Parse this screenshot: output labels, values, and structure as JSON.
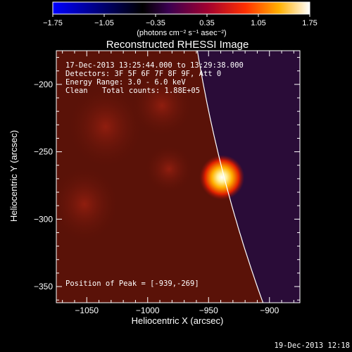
{
  "colorbar": {
    "ticks": [
      "−1.75",
      "−1.05",
      "−0.35",
      "0.35",
      "1.05",
      "1.75"
    ],
    "tick_values": [
      -1.75,
      -1.05,
      -0.35,
      0.35,
      1.05,
      1.75
    ],
    "range": [
      -1.75,
      1.75
    ],
    "unit_label": "(photons cm⁻² s⁻¹ asec⁻²)"
  },
  "chart_data": {
    "type": "heatmap",
    "title": "Reconstructed RHESSI Image",
    "xlabel": "Heliocentric X (arcsec)",
    "ylabel": "Heliocentric Y (arcsec)",
    "xlim": [
      -1075,
      -875
    ],
    "ylim": [
      -362,
      -175
    ],
    "x_ticks": [
      "−1050",
      "−1000",
      "−950",
      "−900"
    ],
    "x_tick_values": [
      -1050,
      -1000,
      -950,
      -900
    ],
    "y_ticks": [
      "−200",
      "−250",
      "−300",
      "−350"
    ],
    "y_tick_values": [
      -200,
      -250,
      -300,
      -350
    ],
    "peak": {
      "x": -939,
      "y": -269
    },
    "annotations": {
      "time_range": "17-Dec-2013 13:25:44.000 to 13:29:38.000",
      "detectors": "Detectors: 3F 5F 6F 7F 8F 9F, Att 0",
      "energy": "Energy Range: 3.0 - 6.0 keV",
      "method": "Clean",
      "counts": "Total counts: 1.88E+05",
      "peak_label": "Position of Peak = [-939,-269]"
    },
    "colors": {
      "background": "#000000",
      "limb": "#ffffff",
      "off_disk": "#5a1208",
      "on_disk": "#2a0c38",
      "source": "#ffffff"
    }
  },
  "timestamp": "19-Dec-2013 12:18"
}
